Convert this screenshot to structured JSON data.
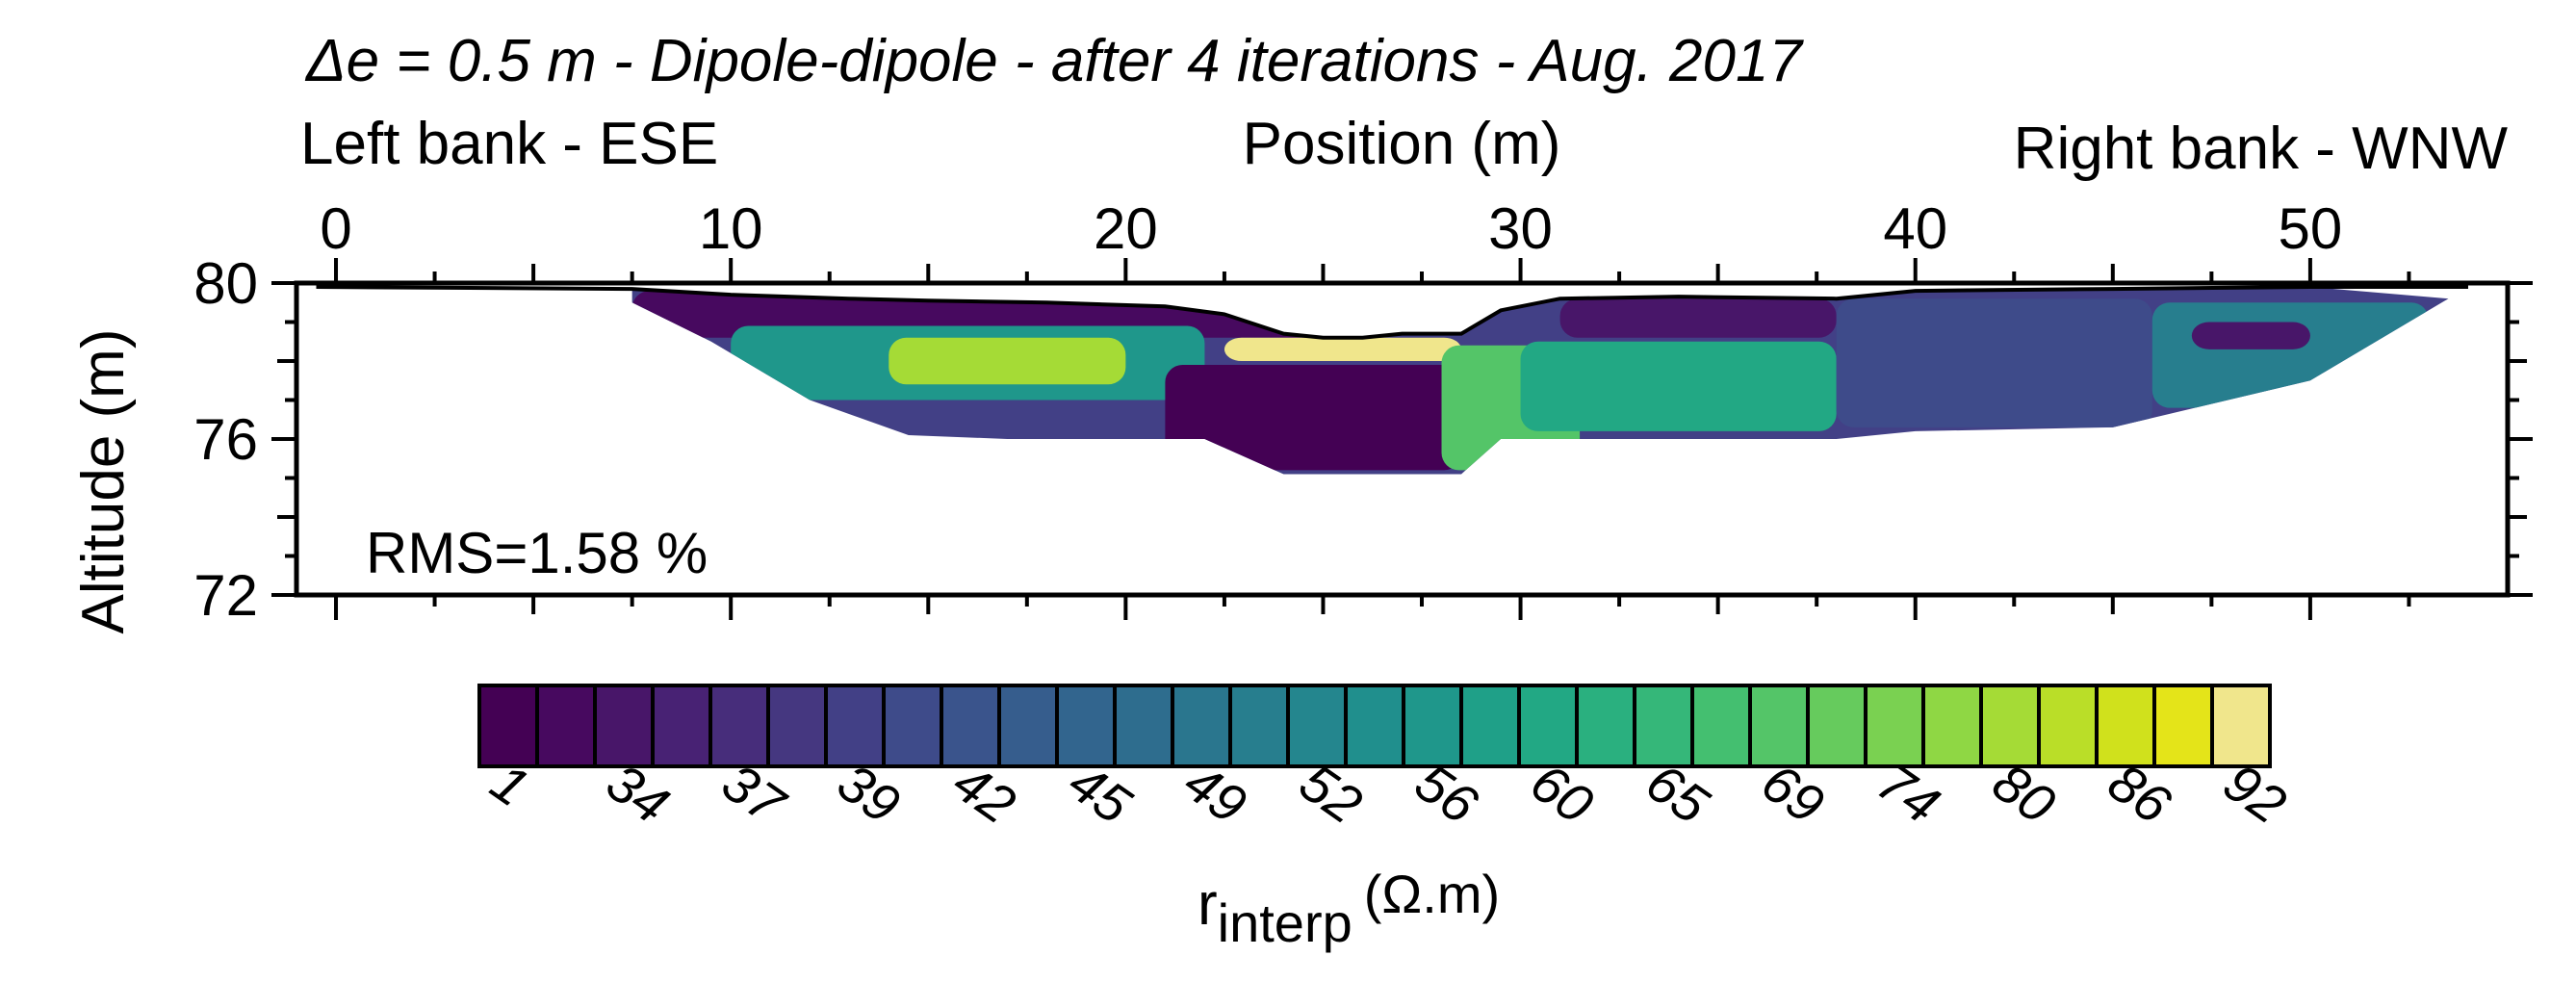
{
  "chart_data": {
    "type": "heatmap",
    "title": "Δe = 0.5 m - Dipole-dipole - after 4 iterations - Aug. 2017",
    "xlabel": "Position (m)",
    "ylabel": "Altitude (m)",
    "left_annotation": "Left bank - ESE",
    "right_annotation": "Right bank - WNW",
    "rms_label": "RMS=1.58 %",
    "x_axis_position": "top",
    "xlim": [
      -1,
      55
    ],
    "ylim": [
      72,
      80
    ],
    "x_ticks": [
      "0",
      "10",
      "20",
      "30",
      "40",
      "50"
    ],
    "y_ticks": [
      "72",
      "76",
      "80"
    ],
    "grid": false,
    "colorbar": {
      "label_main": "r",
      "label_sub": "interp",
      "label_unit": "(Ω.m)",
      "tick_labels": [
        "1",
        "34",
        "37",
        "39",
        "42",
        "45",
        "49",
        "52",
        "56",
        "60",
        "65",
        "69",
        "74",
        "80",
        "86",
        "92"
      ],
      "colors": [
        "#440154",
        "#47095f",
        "#481669",
        "#482274",
        "#472d7b",
        "#453780",
        "#424086",
        "#3e4b8a",
        "#3a548c",
        "#365d8d",
        "#32658e",
        "#2e6d8e",
        "#2a768e",
        "#277e8e",
        "#24868e",
        "#208f8d",
        "#1f978b",
        "#1fa088",
        "#22a884",
        "#2ab07f",
        "#35b779",
        "#44bf70",
        "#54c568",
        "#66cb5d",
        "#7ad151",
        "#8fd744",
        "#a5db36",
        "#bade28",
        "#d0e11c",
        "#e4e419",
        "#f0e68c"
      ]
    },
    "surface_profile": {
      "x": [
        -0.5,
        7.5,
        10,
        13,
        15,
        18,
        21,
        22.5,
        24,
        25,
        26,
        27,
        28.5,
        29.5,
        31,
        34,
        38,
        40,
        45,
        50,
        54
      ],
      "y": [
        79.9,
        79.85,
        79.7,
        79.6,
        79.55,
        79.5,
        79.4,
        79.2,
        78.7,
        78.6,
        78.6,
        78.7,
        78.7,
        79.3,
        79.6,
        79.65,
        79.6,
        79.8,
        79.85,
        79.9,
        79.9
      ]
    },
    "section_bottom": {
      "x": [
        7.5,
        9.5,
        12,
        14.5,
        17,
        22,
        24,
        28.5,
        29.5,
        31,
        38,
        40,
        45,
        50,
        53.5
      ],
      "y": [
        79.5,
        78.5,
        77.0,
        76.1,
        76.0,
        76.0,
        75.1,
        75.1,
        76.0,
        76.0,
        76.0,
        76.2,
        76.3,
        77.5,
        79.6
      ]
    },
    "resistivity_zones": [
      {
        "x": [
          7.5,
          17,
          25.5
        ],
        "y_top": 79.8,
        "y_bottom": 78.6,
        "value_index": 1
      },
      {
        "x": [
          10,
          22
        ],
        "y_top": 78.9,
        "y_bottom": 77.0,
        "value_index": 16
      },
      {
        "x": [
          14,
          20
        ],
        "y_top": 78.6,
        "y_bottom": 77.4,
        "value_index": 26
      },
      {
        "x": [
          22.5,
          28.5
        ],
        "y_top": 78.6,
        "y_bottom": 78.0,
        "value_index": 30
      },
      {
        "x": [
          21,
          28.5
        ],
        "y_top": 77.9,
        "y_bottom": 75.2,
        "value_index": 0
      },
      {
        "x": [
          28,
          31.5
        ],
        "y_top": 78.4,
        "y_bottom": 75.2,
        "value_index": 22
      },
      {
        "x": [
          30,
          38
        ],
        "y_top": 78.5,
        "y_bottom": 76.2,
        "value_index": 18
      },
      {
        "x": [
          31,
          38
        ],
        "y_top": 79.6,
        "y_bottom": 78.6,
        "value_index": 2
      },
      {
        "x": [
          38,
          46
        ],
        "y_top": 79.6,
        "y_bottom": 76.3,
        "value_index": 7
      },
      {
        "x": [
          46,
          53
        ],
        "y_top": 79.5,
        "y_bottom": 76.8,
        "value_index": 13
      },
      {
        "x": [
          47,
          50
        ],
        "y_top": 79.0,
        "y_bottom": 78.3,
        "value_index": 2
      }
    ]
  }
}
